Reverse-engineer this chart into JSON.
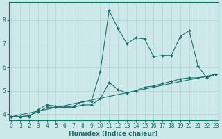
{
  "title": "",
  "xlabel": "Humidex (Indice chaleur)",
  "bg_color": "#cce8e8",
  "line_color": "#1a6e6e",
  "grid_color": "#b8d8d8",
  "x_ticks": [
    0,
    1,
    2,
    3,
    4,
    5,
    6,
    7,
    8,
    9,
    10,
    11,
    12,
    13,
    14,
    15,
    16,
    17,
    18,
    19,
    20,
    21,
    22,
    23
  ],
  "y_ticks": [
    4,
    5,
    6,
    7,
    8
  ],
  "xlim": [
    -0.3,
    23.3
  ],
  "ylim": [
    3.75,
    8.75
  ],
  "series": [
    {
      "x": [
        0,
        1,
        2,
        3,
        4,
        5,
        6,
        7,
        8,
        9,
        10,
        11,
        12,
        13,
        14,
        15,
        16,
        17,
        18,
        19,
        20,
        21,
        22,
        23
      ],
      "y": [
        3.9,
        3.9,
        3.9,
        4.2,
        4.4,
        4.35,
        4.3,
        4.35,
        4.55,
        4.55,
        5.8,
        8.4,
        7.65,
        7.0,
        7.25,
        7.2,
        6.45,
        6.5,
        6.5,
        7.3,
        7.55,
        6.05,
        5.55,
        5.7
      ],
      "markers": true
    },
    {
      "x": [
        0,
        1,
        2,
        3,
        4,
        5,
        6,
        7,
        8,
        9,
        10,
        11,
        12,
        13,
        14,
        15,
        16,
        17,
        18,
        19,
        20,
        21,
        22,
        23
      ],
      "y": [
        3.9,
        3.9,
        3.95,
        4.1,
        4.3,
        4.3,
        4.3,
        4.3,
        4.4,
        4.4,
        4.65,
        5.35,
        5.05,
        4.9,
        5.0,
        5.15,
        5.2,
        5.3,
        5.4,
        5.5,
        5.55,
        5.55,
        5.6,
        5.7
      ],
      "markers": true
    },
    {
      "x": [
        0,
        23
      ],
      "y": [
        3.9,
        5.7
      ],
      "markers": false
    }
  ]
}
